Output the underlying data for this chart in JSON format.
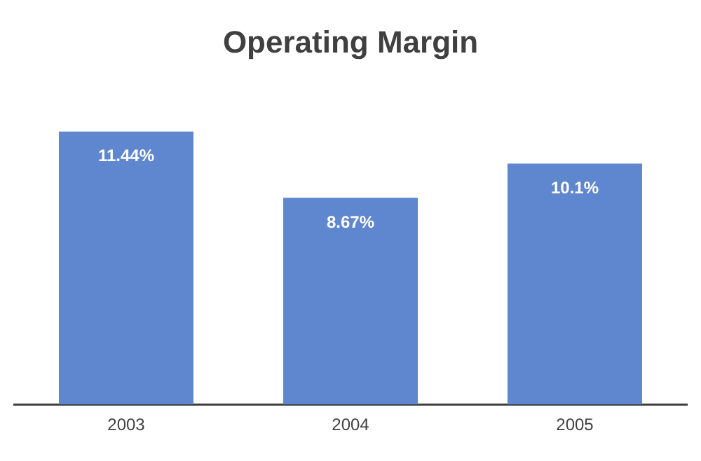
{
  "chart_data": {
    "type": "bar",
    "title": "Operating Margin",
    "categories": [
      "2003",
      "2004",
      "2005"
    ],
    "values": [
      11.44,
      8.67,
      10.1
    ],
    "value_labels": [
      "11.44%",
      "8.67%",
      "10.1%"
    ],
    "color": "#5f87cf",
    "grid": false,
    "legend": false,
    "tick_labels": "x"
  }
}
